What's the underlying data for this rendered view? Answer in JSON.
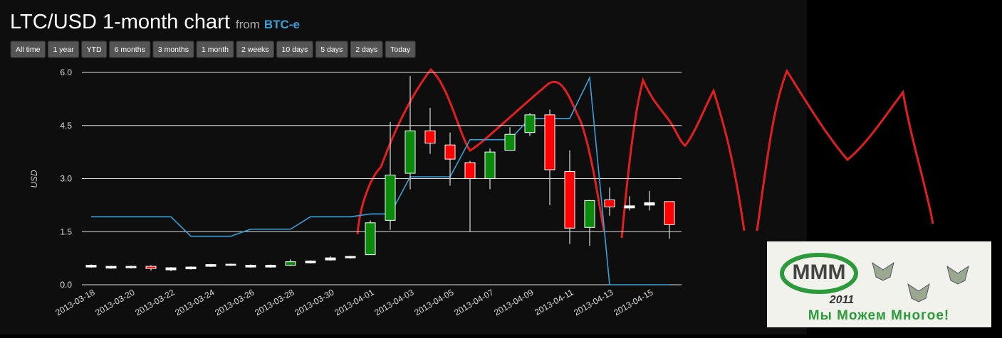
{
  "header": {
    "title": "LTC/USD 1-month chart",
    "from": "from",
    "source": "BTC-e"
  },
  "buttons": [
    "All time",
    "1 year",
    "YTD",
    "6 months",
    "3 months",
    "1 month",
    "2 weeks",
    "10 days",
    "5 days",
    "2 days",
    "Today"
  ],
  "chart_data": {
    "type": "candlestick",
    "ylabel": "USD",
    "categories": [
      "2013-03-18",
      null,
      "2013-03-20",
      null,
      "2013-03-22",
      null,
      "2013-03-24",
      null,
      "2013-03-26",
      null,
      "2013-03-28",
      null,
      "2013-03-30",
      null,
      "2013-04-01",
      null,
      "2013-04-03",
      null,
      "2013-04-05",
      null,
      "2013-04-07",
      null,
      "2013-04-09",
      null,
      "2013-04-11",
      null,
      "2013-04-13",
      null,
      "2013-04-15",
      null
    ],
    "open": [
      0.5,
      0.47,
      0.48,
      0.52,
      0.42,
      0.45,
      0.52,
      0.55,
      0.5,
      0.5,
      0.55,
      0.62,
      0.7,
      0.76,
      0.85,
      1.82,
      3.15,
      4.35,
      3.95,
      3.45,
      3.0,
      3.8,
      4.3,
      4.8,
      3.2,
      1.62,
      2.4,
      2.17,
      2.25,
      2.35
    ],
    "high": [
      0.57,
      0.54,
      0.54,
      0.55,
      0.5,
      0.52,
      0.59,
      0.6,
      0.57,
      0.57,
      0.72,
      0.69,
      0.8,
      0.82,
      1.82,
      4.6,
      5.9,
      5.0,
      4.3,
      3.5,
      3.85,
      4.45,
      4.85,
      4.95,
      3.8,
      2.4,
      2.75,
      2.5,
      2.65,
      2.35
    ],
    "low": [
      0.48,
      0.45,
      0.46,
      0.4,
      0.38,
      0.43,
      0.5,
      0.53,
      0.48,
      0.48,
      0.53,
      0.6,
      0.68,
      0.74,
      0.85,
      1.55,
      2.7,
      3.7,
      2.8,
      1.5,
      2.7,
      3.8,
      4.2,
      2.25,
      1.15,
      1.1,
      1.95,
      2.1,
      2.1,
      1.3
    ],
    "close": [
      0.55,
      0.52,
      0.52,
      0.46,
      0.48,
      0.5,
      0.57,
      0.58,
      0.55,
      0.55,
      0.65,
      0.67,
      0.76,
      0.8,
      1.75,
      3.1,
      4.35,
      4.0,
      3.55,
      3.0,
      3.75,
      4.25,
      4.8,
      3.25,
      1.6,
      2.38,
      2.2,
      2.23,
      2.32,
      1.7
    ],
    "colors": [
      "#ffffff",
      "#ffffff",
      "#ffffff",
      "#ff0000",
      "#ffffff",
      "#ffffff",
      "#ffffff",
      "#ffffff",
      "#ffffff",
      "#ffffff",
      "#0a8a0a",
      "#ffffff",
      "#ffffff",
      "#ffffff",
      "#0a8a0a",
      "#0a8a0a",
      "#0a8a0a",
      "#ff0000",
      "#ff0000",
      "#ff0000",
      "#0a8a0a",
      "#0a8a0a",
      "#0a8a0a",
      "#ff0000",
      "#ff0000",
      "#0a8a0a",
      "#ff0000",
      "#ffffff",
      "#ffffff",
      "#ff0000"
    ],
    "line": {
      "color": "#3aa0d8",
      "values": [
        1.92,
        1.92,
        1.92,
        1.92,
        1.92,
        1.37,
        1.37,
        1.37,
        1.57,
        1.57,
        1.57,
        1.92,
        1.92,
        1.92,
        2.0,
        2.0,
        3.05,
        3.05,
        3.05,
        4.1,
        4.1,
        4.1,
        4.7,
        4.7,
        4.7,
        5.85,
        0.0,
        0.0,
        0.0,
        0.0
      ]
    },
    "ylim": [
      0,
      6
    ],
    "yticks": [
      {
        "value": 0,
        "label": "0.0"
      },
      1.5,
      {
        "value": 3,
        "label": "3.0"
      },
      4.5,
      {
        "value": 6,
        "label": "6.0"
      }
    ],
    "grid": true
  },
  "logo": {
    "brand": "МММ",
    "year": "2011",
    "slogan": "Мы Можем Многое!"
  }
}
